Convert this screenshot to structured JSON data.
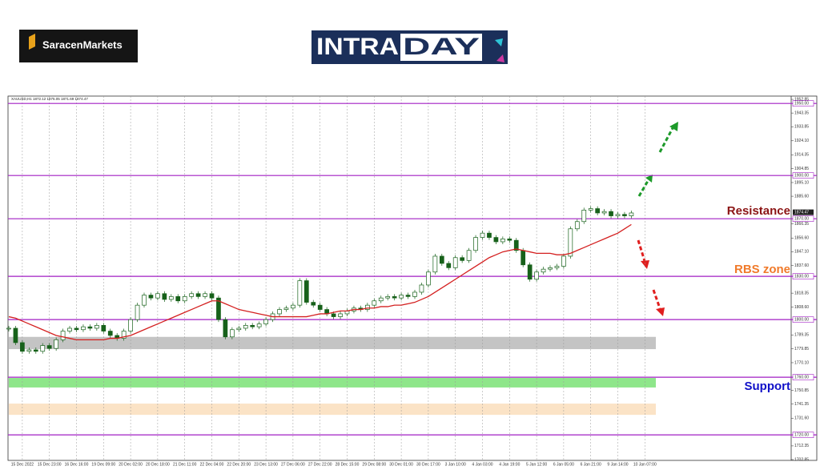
{
  "header": {
    "brand": "SaracenMarkets",
    "logo_left": "INTRA",
    "logo_right": "DAY"
  },
  "chart_data": {
    "type": "candlestick",
    "symbol_info": "XAUUSD,H1  1872.12 1875.05 1871.69 1874.47",
    "categories": [
      null,
      null,
      "15 Dec 2022",
      null,
      null,
      null,
      "15 Dec 23:00",
      null,
      null,
      null,
      "16 Dec 16:00",
      null,
      null,
      null,
      "19 Dec 09:00",
      null,
      null,
      null,
      "20 Dec 02:00",
      null,
      null,
      null,
      "20 Dec 18:00",
      null,
      null,
      null,
      "21 Dec 11:00",
      null,
      null,
      null,
      "22 Dec 04:00",
      null,
      null,
      null,
      "22 Dec 20:00",
      null,
      null,
      null,
      "23 Dec 13:00",
      null,
      null,
      null,
      "27 Dec 06:00",
      null,
      null,
      null,
      "27 Dec 22:00",
      null,
      null,
      null,
      "28 Dec 15:00",
      null,
      null,
      null,
      "29 Dec 08:00",
      null,
      null,
      null,
      "30 Dec 01:00",
      null,
      null,
      null,
      "30 Dec 17:00",
      null,
      null,
      null,
      "3 Jan 10:00",
      null,
      null,
      null,
      "4 Jan 03:00",
      null,
      null,
      null,
      "4 Jan 19:00",
      null,
      null,
      null,
      "5 Jan 12:00",
      null,
      null,
      null,
      "6 Jan 05:00",
      null,
      null,
      null,
      "6 Jan 21:00",
      null,
      null,
      null,
      "9 Jan 14:00",
      null,
      null,
      null,
      "10 Jan 07:00"
    ],
    "series": [
      {
        "type": "candle",
        "color": "#17611a",
        "values": [
          1794,
          1784,
          1778,
          1779,
          1778,
          1782,
          1780,
          1786,
          1792,
          1794,
          1793,
          1795,
          1794,
          1796,
          1792,
          1789,
          1787,
          1792,
          1800,
          1810,
          1817,
          1815,
          1818,
          1814,
          1816,
          1813,
          1816,
          1818,
          1816,
          1818,
          1815,
          1800,
          1788,
          1793,
          1794,
          1796,
          1795,
          1797,
          1800,
          1804,
          1807,
          1808,
          1810,
          1827,
          1812,
          1810,
          1807,
          1804,
          1802,
          1804,
          1806,
          1808,
          1807,
          1810,
          1813,
          1815,
          1816,
          1815,
          1817,
          1816,
          1819,
          1824,
          1833,
          1844,
          1839,
          1836,
          1843,
          1841,
          1848,
          1857,
          1860,
          1857,
          1854,
          1856,
          1855,
          1848,
          1838,
          1828,
          1833,
          1835,
          1836,
          1837,
          1844,
          1863,
          1868,
          1876,
          1877,
          1874,
          1875,
          1872,
          1873,
          1872,
          1874,
          null,
          null
        ]
      },
      {
        "type": "line",
        "color": "#d42020",
        "values": [
          1802,
          1801,
          1799,
          1797,
          1795,
          1793,
          1791,
          1789,
          1788,
          1787,
          1786,
          1786,
          1786,
          1786,
          1786,
          1787,
          1787,
          1788,
          1789,
          1791,
          1793,
          1795,
          1797,
          1799,
          1801,
          1803,
          1805,
          1807,
          1809,
          1811,
          1813,
          1813,
          1811,
          1809,
          1807,
          1806,
          1805,
          1804,
          1803,
          1802,
          1802,
          1802,
          1802,
          1802,
          1802,
          1803,
          1804,
          1804,
          1805,
          1806,
          1806,
          1807,
          1807,
          1808,
          1808,
          1809,
          1809,
          1810,
          1810,
          1811,
          1812,
          1814,
          1816,
          1819,
          1822,
          1825,
          1828,
          1831,
          1834,
          1837,
          1840,
          1843,
          1845,
          1847,
          1848,
          1849,
          1848,
          1847,
          1846,
          1846,
          1846,
          1845,
          1845,
          1846,
          1848,
          1850,
          1852,
          1854,
          1856,
          1858,
          1860,
          1863,
          1866,
          null,
          null
        ]
      }
    ],
    "ylim": [
      1702.3,
      1955.1
    ],
    "yticks": [
      1952.85,
      1943.35,
      1933.85,
      {
        "value": 1924.1,
        "label": "1924.10"
      },
      1914.35,
      1904.85,
      {
        "value": 1895.1,
        "label": "1895.10"
      },
      {
        "value": 1885.6,
        "label": "1885.60"
      },
      1866.35,
      {
        "value": 1856.6,
        "label": "1856.60"
      },
      {
        "value": 1847.1,
        "label": "1847.10"
      },
      {
        "value": 1837.6,
        "label": "1837.60"
      },
      1818.35,
      {
        "value": 1808.6,
        "label": "1808.60"
      },
      1789.35,
      1779.85,
      {
        "value": 1770.1,
        "label": "1770.10"
      },
      1750.85,
      1741.35,
      {
        "value": 1731.6,
        "label": "1731.60"
      },
      1712.35,
      1702.85
    ],
    "levels": [
      {
        "value": 1950,
        "label": "1950.00"
      },
      {
        "value": 1900,
        "label": "1900.00"
      },
      {
        "value": 1870,
        "label": "1870.00"
      },
      {
        "value": 1830,
        "label": "1830.00"
      },
      {
        "value": 1800,
        "label": "1800.00"
      },
      {
        "value": 1760,
        "label": "1760.00"
      },
      {
        "value": 1720,
        "label": "1720.00"
      }
    ],
    "level_color": "#a21fc4",
    "last_price": {
      "value": 1874.47,
      "label": "1874.47"
    },
    "zones": [
      {
        "from": 1779.5,
        "to": 1788,
        "color": "#c4c4c4"
      },
      {
        "from": 1752.9,
        "to": 1759.5,
        "color": "#8ee68a"
      },
      {
        "from": 1733.9,
        "to": 1741.7,
        "color": "#fbe3c6"
      }
    ],
    "annotations": [
      {
        "text": "Resistance",
        "color": "#8b1414"
      },
      {
        "text": "RBS zone",
        "color": "#f07a2a"
      },
      {
        "text": "Support",
        "color": "#1010c8"
      }
    ],
    "grid": true
  }
}
